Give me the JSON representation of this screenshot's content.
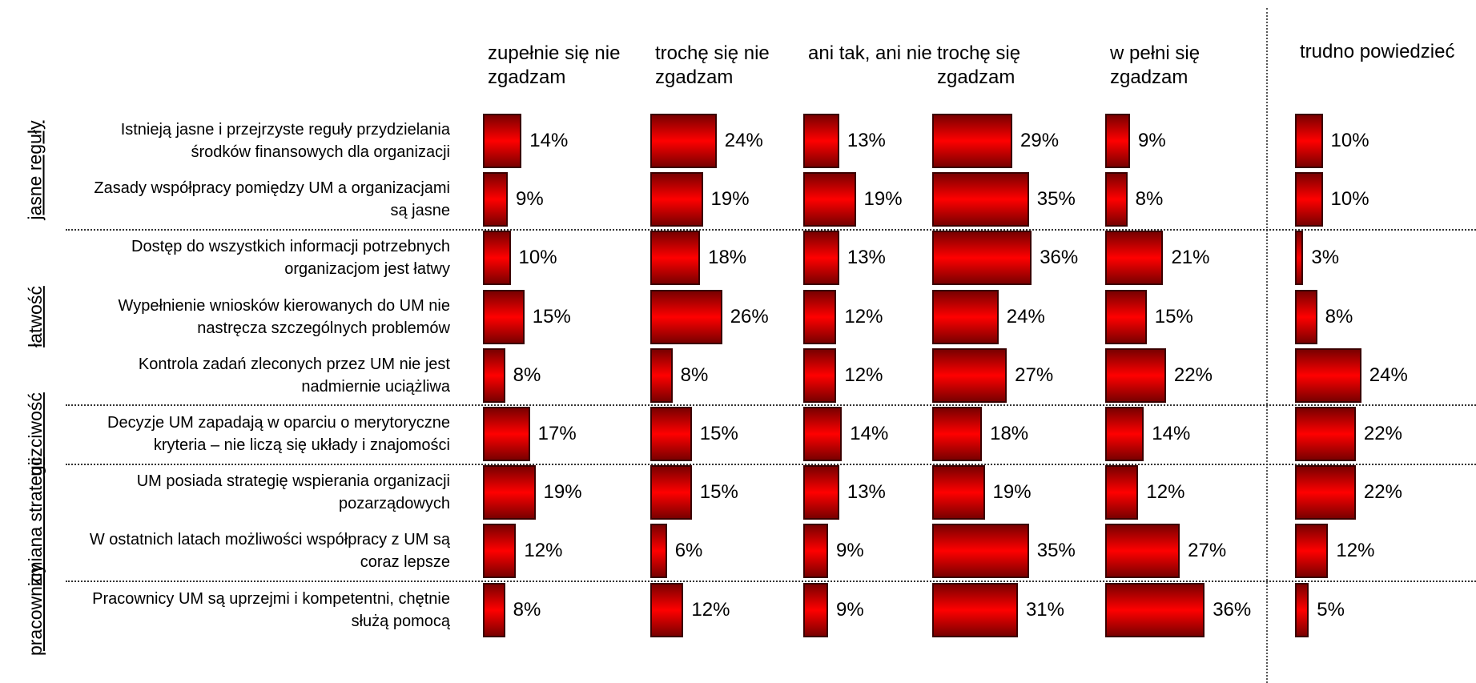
{
  "chart_data": {
    "type": "bar",
    "categories": [
      "Istnieją jasne i przejrzyste reguły przydzielania środków finansowych dla organizacji",
      "Zasady współpracy pomiędzy UM a organizacjami są jasne",
      "Dostęp do wszystkich informacji potrzebnych organizacjom jest łatwy",
      "Wypełnienie wniosków kierowanych do UM nie nastręcza szczególnych problemów",
      "Kontrola zadań zleconych przez UM nie jest nadmiernie uciążliwa",
      "Decyzje UM zapadają w oparciu o merytoryczne kryteria – nie liczą się układy i znajomości",
      "UM posiada strategię wspierania organizacji pozarządowych",
      "W ostatnich latach możliwości współpracy z UM są coraz lepsze",
      "Pracownicy UM są uprzejmi i kompetentni, chętnie służą pomocą"
    ],
    "category_groups": [
      "jasne reguły",
      "jasne reguły",
      "łatwość",
      "łatwość",
      "łatwość",
      "uczciwość",
      "zmiana strategii",
      "zmiana strategii",
      "pracownicy"
    ],
    "color": "#ff0000",
    "series": [
      {
        "name": "zupełnie się nie zgadzam",
        "values": [
          14,
          9,
          10,
          15,
          8,
          17,
          19,
          12,
          8
        ],
        "value_labels": [
          "14%",
          "9%",
          "10%",
          "15%",
          "8%",
          "17%",
          "19%",
          "12%",
          "8%"
        ]
      },
      {
        "name": "trochę się nie zgadzam",
        "values": [
          24,
          19,
          18,
          26,
          8,
          15,
          15,
          6,
          12
        ],
        "value_labels": [
          "24%",
          "19%",
          "18%",
          "26%",
          "8%",
          "15%",
          "15%",
          "6%",
          "12%"
        ]
      },
      {
        "name": "ani tak, ani nie",
        "values": [
          13,
          19,
          13,
          12,
          12,
          14,
          13,
          9,
          9
        ],
        "value_labels": [
          "13%",
          "19%",
          "13%",
          "12%",
          "12%",
          "14%",
          "13%",
          "9%",
          "9%"
        ]
      },
      {
        "name": "trochę się zgadzam",
        "values": [
          29,
          35,
          36,
          24,
          27,
          18,
          19,
          35,
          31
        ],
        "value_labels": [
          "29%",
          "35%",
          "36%",
          "24%",
          "27%",
          "18%",
          "19%",
          "35%",
          "31%"
        ]
      },
      {
        "name": "w pełni się zgadzam",
        "values": [
          9,
          8,
          21,
          15,
          22,
          14,
          12,
          27,
          36
        ],
        "value_labels": [
          "9%",
          "8%",
          "21%",
          "15%",
          "22%",
          "14%",
          "12%",
          "27%",
          "36%"
        ]
      },
      {
        "name": "trudno powiedzieć",
        "values": [
          10,
          10,
          3,
          8,
          24,
          22,
          22,
          12,
          5
        ],
        "value_labels": [
          "10%",
          "10%",
          "3%",
          "8%",
          "24%",
          "22%",
          "22%",
          "12%",
          "5%"
        ]
      }
    ]
  }
}
